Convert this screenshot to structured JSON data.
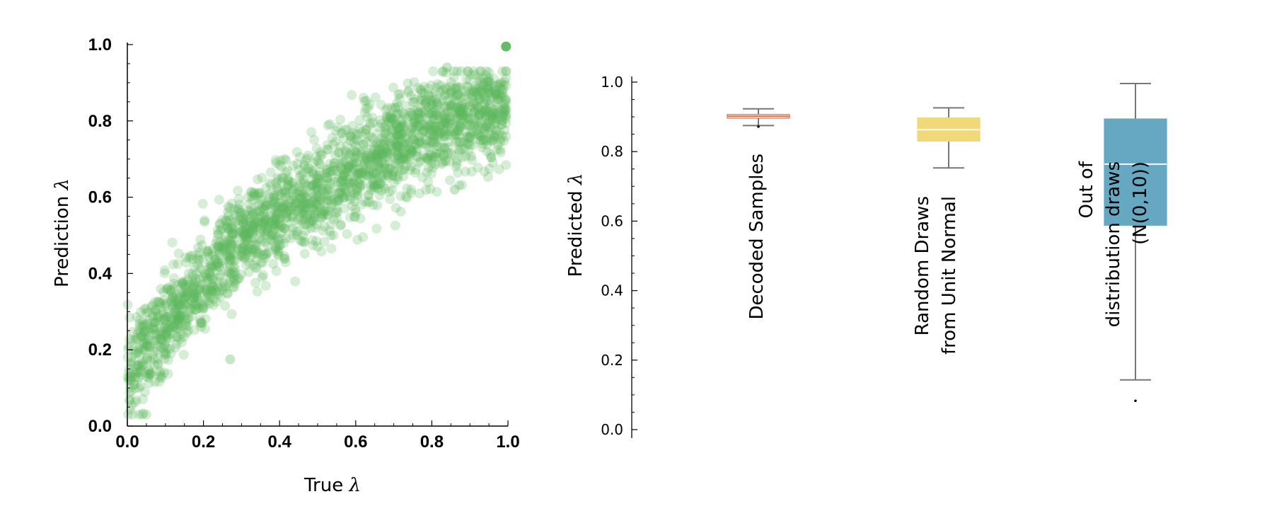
{
  "chart_data": [
    {
      "type": "scatter",
      "xlabel": "True",
      "ylabel": "Prediction",
      "label_symbol": "λ",
      "xlim": [
        0.0,
        1.0
      ],
      "ylim": [
        0.0,
        1.0
      ],
      "xticks": [
        "0.0",
        "0.2",
        "0.4",
        "0.6",
        "0.8",
        "1.0"
      ],
      "yticks": [
        "0.0",
        "0.2",
        "0.4",
        "0.6",
        "0.8",
        "1.0"
      ],
      "grid": false,
      "marker_color": "#5cb85c",
      "marker_opacity": 0.25,
      "trend": [
        {
          "x": 0.0,
          "y": 0.14
        },
        {
          "x": 0.1,
          "y": 0.26
        },
        {
          "x": 0.2,
          "y": 0.38
        },
        {
          "x": 0.3,
          "y": 0.48
        },
        {
          "x": 0.4,
          "y": 0.55
        },
        {
          "x": 0.5,
          "y": 0.61
        },
        {
          "x": 0.6,
          "y": 0.67
        },
        {
          "x": 0.7,
          "y": 0.74
        },
        {
          "x": 0.8,
          "y": 0.78
        },
        {
          "x": 0.9,
          "y": 0.81
        },
        {
          "x": 0.95,
          "y": 0.82
        }
      ],
      "spread": 0.065,
      "point_count": 2200,
      "outliers": [
        {
          "x": 0.995,
          "y": 0.995
        },
        {
          "x": 0.27,
          "y": 0.175
        },
        {
          "x": 0.84,
          "y": 0.94
        },
        {
          "x": 0.86,
          "y": 0.62
        }
      ]
    },
    {
      "type": "box",
      "ylabel": "Predicted",
      "label_symbol": "λ",
      "ylim": [
        0.0,
        1.0
      ],
      "yticks": [
        "0.0",
        "0.2",
        "0.4",
        "0.6",
        "0.8",
        "1.0"
      ],
      "categories": [
        {
          "lines": [
            "Decoded Samples"
          ],
          "q1": 0.896,
          "median": 0.902,
          "q3": 0.907,
          "whisker_low": 0.875,
          "whisker_high": 0.923,
          "fliers": [
            0.872
          ],
          "color": "#ffffff",
          "median_color": "#e8704a"
        },
        {
          "lines": [
            "Random Draws",
            "from Unit Normal"
          ],
          "q1": 0.83,
          "median": 0.863,
          "q3": 0.897,
          "whisker_low": 0.753,
          "whisker_high": 0.926,
          "fliers": [],
          "color": "#efd97a",
          "median_color": "#ffffff"
        },
        {
          "lines": [
            "Out of",
            "distribution draws",
            "(N(0,10))"
          ],
          "q1": 0.588,
          "median": 0.764,
          "q3": 0.894,
          "whisker_low": 0.143,
          "whisker_high": 0.996,
          "fliers": [
            0.083
          ],
          "color": "#66a7c2",
          "median_color": "#ffffff"
        }
      ]
    }
  ]
}
